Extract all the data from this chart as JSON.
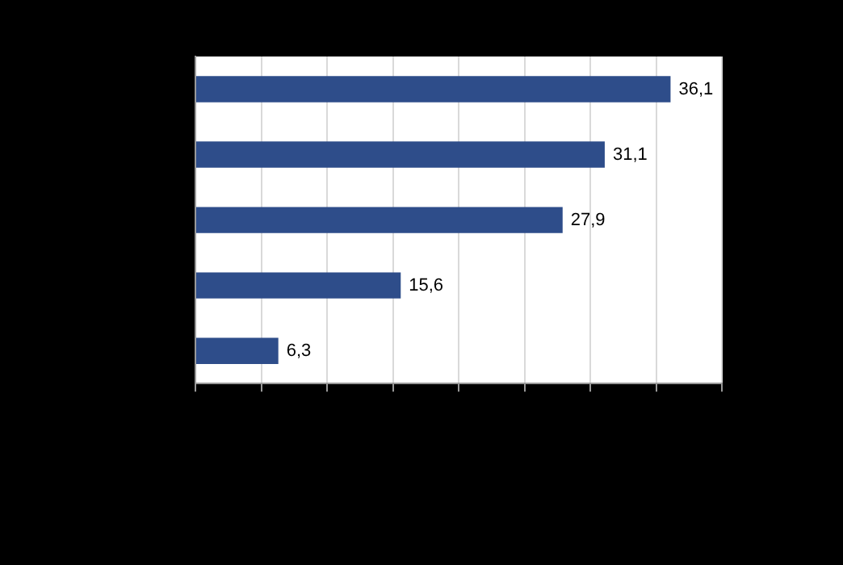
{
  "chart_data": {
    "type": "bar",
    "orientation": "horizontal",
    "categories": [
      null,
      null,
      null,
      null,
      null
    ],
    "values": [
      36.1,
      31.1,
      27.9,
      15.6,
      6.3
    ],
    "value_labels": [
      "36,1",
      "31,1",
      "27,9",
      "15,6",
      "6,3"
    ],
    "color": "#2e4d8a",
    "xlim": [
      0,
      40
    ],
    "xticks": [
      {
        "value": 0,
        "label": null
      },
      {
        "value": 5,
        "label": null
      },
      {
        "value": 10,
        "label": null
      },
      {
        "value": 15,
        "label": null
      },
      {
        "value": 20,
        "label": null
      },
      {
        "value": 25,
        "label": null
      },
      {
        "value": 30,
        "label": null
      },
      {
        "value": 35,
        "label": null
      },
      {
        "value": 40,
        "label": null
      }
    ],
    "grid": "x"
  }
}
